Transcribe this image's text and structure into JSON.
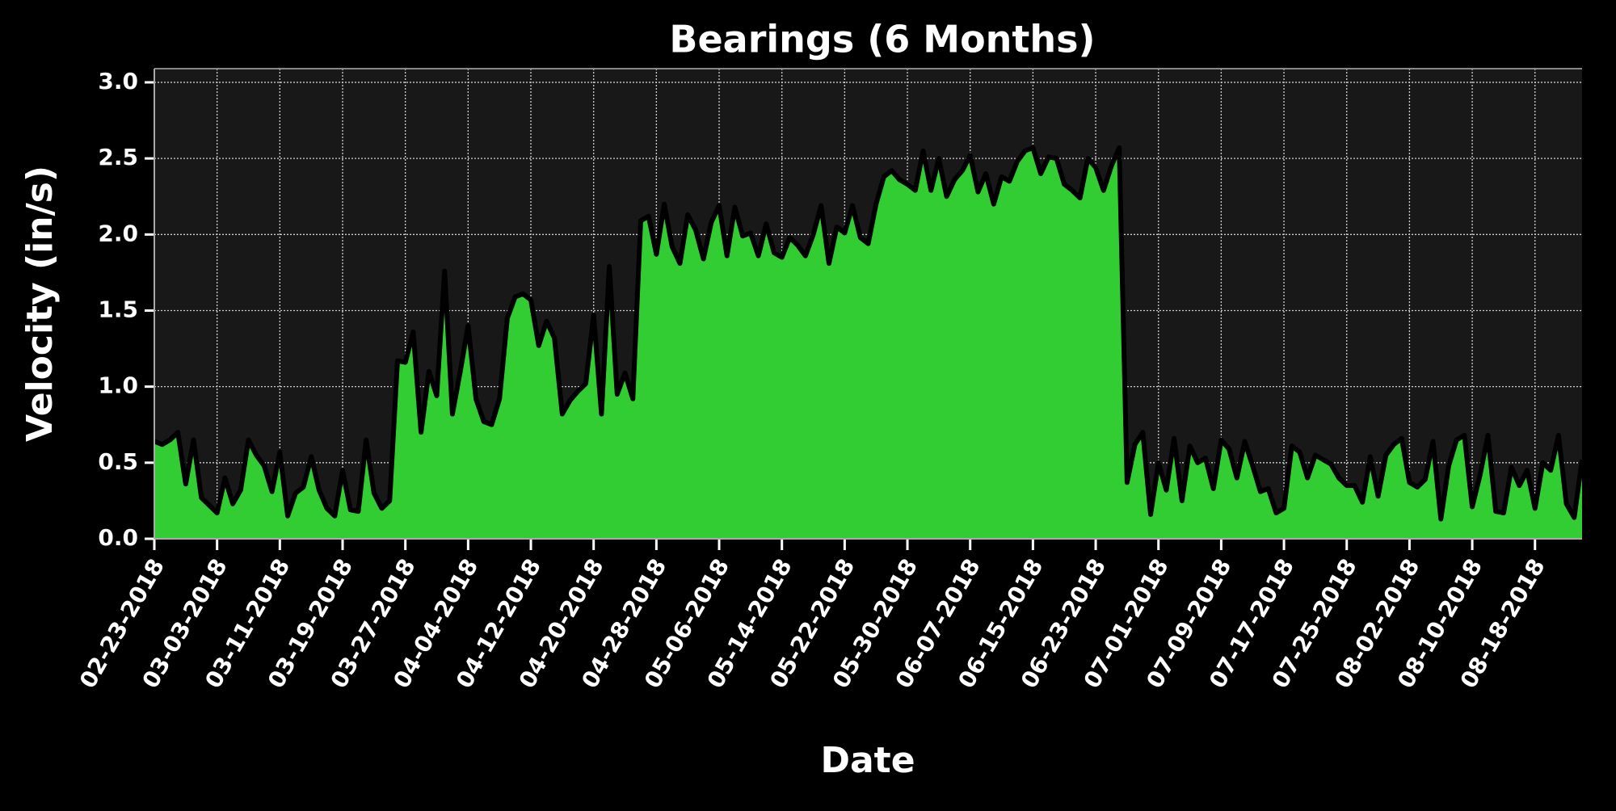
{
  "chart_data": {
    "type": "area",
    "title": "Bearings (6 Months)",
    "x_label": "Date",
    "y_label": "Velocity (in/s)",
    "x": [
      "02-23-2018",
      "02-24-2018",
      "02-25-2018",
      "02-26-2018",
      "02-27-2018",
      "02-28-2018",
      "03-01-2018",
      "03-02-2018",
      "03-03-2018",
      "03-04-2018",
      "03-05-2018",
      "03-06-2018",
      "03-07-2018",
      "03-08-2018",
      "03-09-2018",
      "03-10-2018",
      "03-11-2018",
      "03-12-2018",
      "03-13-2018",
      "03-14-2018",
      "03-15-2018",
      "03-16-2018",
      "03-17-2018",
      "03-18-2018",
      "03-19-2018",
      "03-20-2018",
      "03-21-2018",
      "03-22-2018",
      "03-23-2018",
      "03-24-2018",
      "03-25-2018",
      "03-26-2018",
      "03-27-2018",
      "03-28-2018",
      "03-29-2018",
      "03-30-2018",
      "03-31-2018",
      "04-01-2018",
      "04-02-2018",
      "04-03-2018",
      "04-04-2018",
      "04-05-2018",
      "04-06-2018",
      "04-07-2018",
      "04-08-2018",
      "04-09-2018",
      "04-10-2018",
      "04-11-2018",
      "04-12-2018",
      "04-13-2018",
      "04-14-2018",
      "04-15-2018",
      "04-16-2018",
      "04-17-2018",
      "04-18-2018",
      "04-19-2018",
      "04-20-2018",
      "04-21-2018",
      "04-22-2018",
      "04-23-2018",
      "04-24-2018",
      "04-25-2018",
      "04-26-2018",
      "04-27-2018",
      "04-28-2018",
      "04-29-2018",
      "04-30-2018",
      "05-01-2018",
      "05-02-2018",
      "05-03-2018",
      "05-04-2018",
      "05-05-2018",
      "05-06-2018",
      "05-07-2018",
      "05-08-2018",
      "05-09-2018",
      "05-10-2018",
      "05-11-2018",
      "05-12-2018",
      "05-13-2018",
      "05-14-2018",
      "05-15-2018",
      "05-16-2018",
      "05-17-2018",
      "05-18-2018",
      "05-19-2018",
      "05-20-2018",
      "05-21-2018",
      "05-22-2018",
      "05-23-2018",
      "05-24-2018",
      "05-25-2018",
      "05-26-2018",
      "05-27-2018",
      "05-28-2018",
      "05-29-2018",
      "05-30-2018",
      "05-31-2018",
      "06-01-2018",
      "06-02-2018",
      "06-03-2018",
      "06-04-2018",
      "06-05-2018",
      "06-06-2018",
      "06-07-2018",
      "06-08-2018",
      "06-09-2018",
      "06-10-2018",
      "06-11-2018",
      "06-12-2018",
      "06-13-2018",
      "06-14-2018",
      "06-15-2018",
      "06-16-2018",
      "06-17-2018",
      "06-18-2018",
      "06-19-2018",
      "06-20-2018",
      "06-21-2018",
      "06-22-2018",
      "06-23-2018",
      "06-24-2018",
      "06-25-2018",
      "06-26-2018",
      "06-27-2018",
      "06-28-2018",
      "06-29-2018",
      "06-30-2018",
      "07-01-2018",
      "07-02-2018",
      "07-03-2018",
      "07-04-2018",
      "07-05-2018",
      "07-06-2018",
      "07-07-2018",
      "07-08-2018",
      "07-09-2018",
      "07-10-2018",
      "07-11-2018",
      "07-12-2018",
      "07-13-2018",
      "07-14-2018",
      "07-15-2018",
      "07-16-2018",
      "07-17-2018",
      "07-18-2018",
      "07-19-2018",
      "07-20-2018",
      "07-21-2018",
      "07-22-2018",
      "07-23-2018",
      "07-24-2018",
      "07-25-2018",
      "07-26-2018",
      "07-27-2018",
      "07-28-2018",
      "07-29-2018",
      "07-30-2018",
      "07-31-2018",
      "08-01-2018",
      "08-02-2018",
      "08-03-2018",
      "08-04-2018",
      "08-05-2018",
      "08-06-2018",
      "08-07-2018",
      "08-08-2018",
      "08-09-2018",
      "08-10-2018",
      "08-11-2018",
      "08-12-2018",
      "08-13-2018",
      "08-14-2018",
      "08-15-2018",
      "08-16-2018",
      "08-17-2018",
      "08-18-2018",
      "08-19-2018",
      "08-20-2018",
      "08-21-2018",
      "08-22-2018",
      "08-23-2018",
      "08-24-2018"
    ],
    "values": [
      0.64,
      0.62,
      0.65,
      0.7,
      0.36,
      0.65,
      0.27,
      0.22,
      0.17,
      0.4,
      0.23,
      0.32,
      0.65,
      0.55,
      0.48,
      0.31,
      0.57,
      0.15,
      0.3,
      0.34,
      0.54,
      0.32,
      0.2,
      0.15,
      0.45,
      0.19,
      0.18,
      0.65,
      0.3,
      0.2,
      0.25,
      1.17,
      1.16,
      1.36,
      0.7,
      1.1,
      0.94,
      1.76,
      0.82,
      1.1,
      1.4,
      0.92,
      0.77,
      0.75,
      0.92,
      1.45,
      1.59,
      1.61,
      1.57,
      1.27,
      1.43,
      1.32,
      0.82,
      0.91,
      0.97,
      1.02,
      1.47,
      0.82,
      1.79,
      0.95,
      1.09,
      0.92,
      2.09,
      2.12,
      1.87,
      2.2,
      1.92,
      1.81,
      2.13,
      2.03,
      1.84,
      2.08,
      2.19,
      1.86,
      2.18,
      1.99,
      2.01,
      1.86,
      2.07,
      1.88,
      1.85,
      1.98,
      1.93,
      1.86,
      2.0,
      2.19,
      1.81,
      2.05,
      2.01,
      2.19,
      1.98,
      1.94,
      2.2,
      2.38,
      2.42,
      2.36,
      2.33,
      2.29,
      2.55,
      2.29,
      2.5,
      2.25,
      2.36,
      2.42,
      2.52,
      2.28,
      2.4,
      2.2,
      2.38,
      2.35,
      2.48,
      2.55,
      2.57,
      2.4,
      2.51,
      2.5,
      2.33,
      2.29,
      2.24,
      2.5,
      2.44,
      2.29,
      2.45,
      2.57,
      0.37,
      0.62,
      0.7,
      0.16,
      0.5,
      0.32,
      0.66,
      0.25,
      0.61,
      0.5,
      0.53,
      0.33,
      0.65,
      0.59,
      0.4,
      0.64,
      0.48,
      0.31,
      0.33,
      0.17,
      0.2,
      0.61,
      0.57,
      0.4,
      0.55,
      0.52,
      0.49,
      0.4,
      0.35,
      0.35,
      0.24,
      0.54,
      0.28,
      0.55,
      0.62,
      0.66,
      0.37,
      0.34,
      0.39,
      0.64,
      0.13,
      0.48,
      0.65,
      0.68,
      0.21,
      0.42,
      0.68,
      0.18,
      0.17,
      0.47,
      0.35,
      0.45,
      0.2,
      0.5,
      0.45,
      0.68,
      0.23,
      0.14,
      0.52
    ],
    "color": "#32cd32",
    "line_color": "#000000",
    "xlim": [
      "02-23-2018",
      "08-24-2018"
    ],
    "xticks": [
      "02-23-2018",
      "03-03-2018",
      "03-11-2018",
      "03-19-2018",
      "03-27-2018",
      "04-04-2018",
      "04-12-2018",
      "04-20-2018",
      "04-28-2018",
      "05-06-2018",
      "05-14-2018",
      "05-22-2018",
      "05-30-2018",
      "06-07-2018",
      "06-15-2018",
      "06-23-2018",
      "07-01-2018",
      "07-09-2018",
      "07-17-2018",
      "07-25-2018",
      "08-02-2018",
      "08-10-2018",
      "08-18-2018"
    ],
    "ylim": [
      0,
      3.09
    ],
    "yticks": [
      {
        "value": 0,
        "label": "0.0"
      },
      0.5,
      {
        "value": 1,
        "label": "1.0"
      },
      1.5,
      {
        "value": 2,
        "label": "2.0"
      },
      2.5,
      {
        "value": 3,
        "label": "3.0"
      }
    ],
    "grid": true
  }
}
